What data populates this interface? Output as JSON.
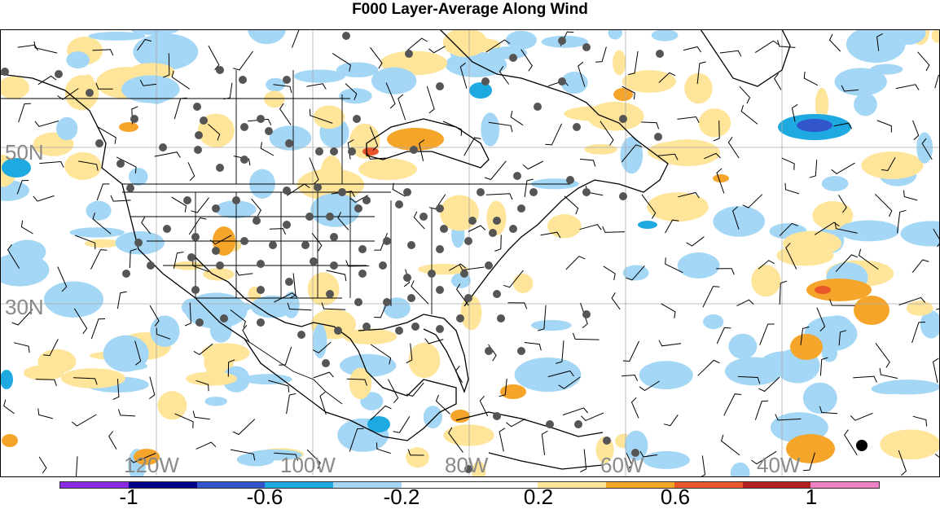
{
  "title": "F000 Layer-Average Along Wind",
  "lat_labels": [
    "50N",
    "30N"
  ],
  "lon_labels": [
    "120W",
    "100W",
    "80W",
    "60W",
    "40W"
  ],
  "colorbar": {
    "colors": [
      "#8a2be2",
      "#00008b",
      "#3355cc",
      "#1fa9e1",
      "#a3d7f5",
      "#ffffff",
      "#ffffff",
      "#ffe59a",
      "#f5a52a",
      "#e8562a",
      "#b22222",
      "#ee82c3"
    ],
    "labels": [
      "-1",
      "-0.6",
      "-0.2",
      "0.2",
      "0.6",
      "1"
    ]
  },
  "colors": {
    "land_line": "#000000",
    "grid": "#aaaaaa",
    "station": "#555555",
    "positive_light": "#ffe59a",
    "positive_mid": "#f5a52a",
    "positive_high": "#e8562a",
    "negative_light": "#a3d7f5",
    "negative_mid": "#1fa9e1",
    "negative_high": "#3355cc"
  }
}
